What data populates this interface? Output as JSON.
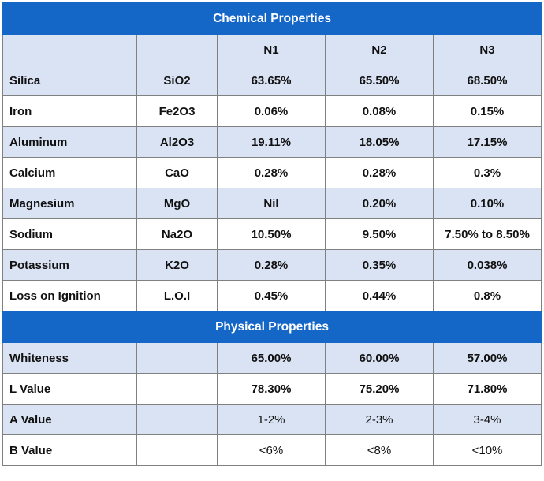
{
  "chemical": {
    "title": "Chemical Properties",
    "headers": [
      "",
      "",
      "N1",
      "N2",
      "N3"
    ],
    "rows": [
      {
        "name": "Silica",
        "formula": "SiO2",
        "n1": "63.65%",
        "n2": "65.50%",
        "n3": "68.50%"
      },
      {
        "name": "Iron",
        "formula": "Fe2O3",
        "n1": "0.06%",
        "n2": "0.08%",
        "n3": "0.15%"
      },
      {
        "name": "Aluminum",
        "formula": "Al2O3",
        "n1": "19.11%",
        "n2": "18.05%",
        "n3": "17.15%"
      },
      {
        "name": "Calcium",
        "formula": "CaO",
        "n1": "0.28%",
        "n2": "0.28%",
        "n3": "0.3%"
      },
      {
        "name": "Magnesium",
        "formula": "MgO",
        "n1": "Nil",
        "n2": "0.20%",
        "n3": "0.10%"
      },
      {
        "name": "Sodium",
        "formula": "Na2O",
        "n1": "10.50%",
        "n2": "9.50%",
        "n3": "7.50% to 8.50%"
      },
      {
        "name": "Potassium",
        "formula": "K2O",
        "n1": "0.28%",
        "n2": "0.35%",
        "n3": "0.038%"
      },
      {
        "name": "Loss on Ignition",
        "formula": "L.O.I",
        "n1": "0.45%",
        "n2": "0.44%",
        "n3": "0.8%"
      }
    ]
  },
  "physical": {
    "title": "Physical Properties",
    "rows": [
      {
        "name": "Whiteness",
        "n1": "65.00%",
        "n2": "60.00%",
        "n3": "57.00%"
      },
      {
        "name": "L Value",
        "n1": "78.30%",
        "n2": "75.20%",
        "n3": "71.80%"
      },
      {
        "name": "A Value",
        "n1": "1-2%",
        "n2": "2-3%",
        "n3": "3-4%"
      },
      {
        "name": "B Value",
        "n1": "<6%",
        "n2": "<8%",
        "n3": "<10%"
      }
    ]
  },
  "colors": {
    "header_blue": "#1466c7",
    "row_light": "#d9e3f3",
    "row_white": "#ffffff"
  }
}
